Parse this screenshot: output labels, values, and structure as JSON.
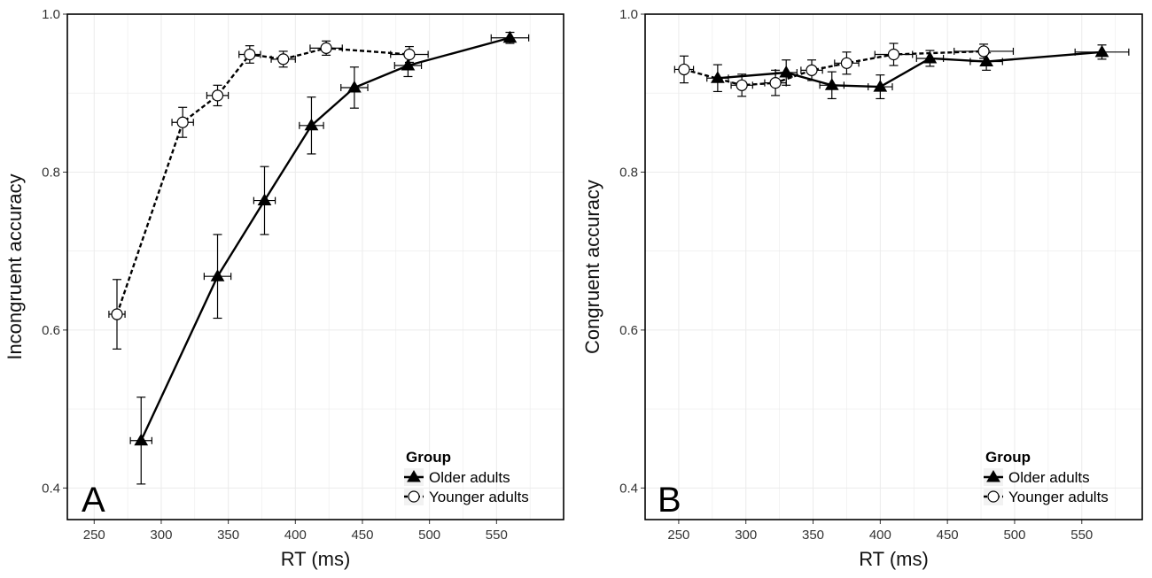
{
  "chart_data": [
    {
      "type": "line",
      "panel_label": "A",
      "xlabel": "RT (ms)",
      "ylabel": "Incongruent accuracy",
      "xlim": [
        230,
        600
      ],
      "ylim": [
        0.36,
        1.0
      ],
      "xticks": [
        250,
        300,
        350,
        400,
        450,
        500,
        550
      ],
      "xtick_labels": [
        "250",
        "300",
        "350",
        "400",
        "450",
        "500",
        "550"
      ],
      "yticks": [
        0.4,
        0.6,
        0.8,
        1.0
      ],
      "ytick_labels": [
        "0.4",
        "0.6",
        "0.8",
        "1.0"
      ],
      "grid": true,
      "legend": {
        "title": "Group",
        "position": "bottom-right",
        "entries": [
          "Older adults",
          "Younger adults"
        ]
      },
      "series": [
        {
          "name": "Older adults",
          "marker": "filled-triangle",
          "line_style": "solid",
          "x": [
            285,
            342,
            377,
            412,
            444,
            484,
            560
          ],
          "y": [
            0.46,
            0.668,
            0.764,
            0.859,
            0.907,
            0.935,
            0.97
          ],
          "x_err": [
            8,
            10,
            8,
            9,
            10,
            10,
            14
          ],
          "y_err": [
            0.055,
            0.053,
            0.043,
            0.036,
            0.026,
            0.014,
            0.007
          ]
        },
        {
          "name": "Younger adults",
          "marker": "open-circle",
          "line_style": "dashed",
          "x": [
            267,
            316,
            342,
            366,
            391,
            423,
            485
          ],
          "y": [
            0.62,
            0.863,
            0.897,
            0.949,
            0.943,
            0.957,
            0.949
          ],
          "x_err": [
            6,
            8,
            8,
            8,
            9,
            12,
            14
          ],
          "y_err": [
            0.044,
            0.019,
            0.013,
            0.011,
            0.01,
            0.009,
            0.01
          ]
        }
      ]
    },
    {
      "type": "line",
      "panel_label": "B",
      "xlabel": "RT (ms)",
      "ylabel": "Congruent accuracy",
      "xlim": [
        225,
        595
      ],
      "ylim": [
        0.36,
        1.0
      ],
      "xticks": [
        250,
        300,
        350,
        400,
        450,
        500,
        550
      ],
      "xtick_labels": [
        "250",
        "300",
        "350",
        "400",
        "450",
        "500",
        "550"
      ],
      "yticks": [
        0.4,
        0.6,
        0.8,
        1.0
      ],
      "ytick_labels": [
        "0.4",
        "0.6",
        "0.8",
        "1.0"
      ],
      "grid": true,
      "legend": {
        "title": "Group",
        "position": "bottom-right",
        "entries": [
          "Older adults",
          "Younger adults"
        ]
      },
      "series": [
        {
          "name": "Older adults",
          "marker": "filled-triangle",
          "line_style": "solid",
          "x": [
            279,
            330,
            364,
            400,
            437,
            479,
            565
          ],
          "y": [
            0.919,
            0.926,
            0.91,
            0.908,
            0.944,
            0.94,
            0.952
          ],
          "x_err": [
            8,
            8,
            9,
            9,
            10,
            12,
            20
          ],
          "y_err": [
            0.017,
            0.016,
            0.017,
            0.015,
            0.01,
            0.011,
            0.009
          ]
        },
        {
          "name": "Younger adults",
          "marker": "open-circle",
          "line_style": "dashed",
          "x": [
            254,
            297,
            322,
            349,
            375,
            410,
            477
          ],
          "y": [
            0.93,
            0.91,
            0.913,
            0.929,
            0.938,
            0.949,
            0.953
          ],
          "x_err": [
            7,
            8,
            8,
            8,
            9,
            14,
            22
          ],
          "y_err": [
            0.017,
            0.014,
            0.016,
            0.013,
            0.014,
            0.014,
            0.009
          ]
        }
      ]
    }
  ],
  "colors": {
    "frame": "#000000",
    "grid": "#ebebeb",
    "series": "#000000",
    "marker_fill_open": "#ffffff"
  }
}
